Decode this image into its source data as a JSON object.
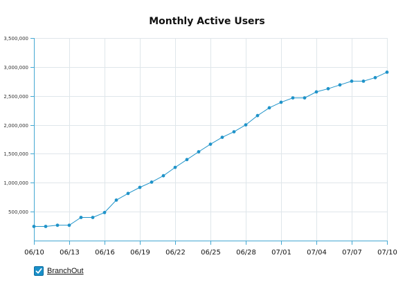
{
  "colors": {
    "series": "#1f93c9",
    "axis": "#42a7d2",
    "grid": "#dfe6ea",
    "checkbox": "#198fc9"
  },
  "legend": {
    "label": "BranchOut",
    "checked": true,
    "icon": "checkmark-icon"
  },
  "chart_data": {
    "type": "line",
    "title": "Monthly Active Users",
    "xlabel": "",
    "ylabel": "",
    "ylim": [
      0,
      3500000
    ],
    "yticks": [
      500000,
      1000000,
      1500000,
      2000000,
      2500000,
      3000000,
      3500000
    ],
    "ytick_labels": [
      "500,000",
      "1,000,000",
      "1,500,000",
      "2,000,000",
      "2,500,000",
      "3,000,000",
      "3,500,000"
    ],
    "x_tick_labels": [
      "06/10",
      "06/13",
      "06/16",
      "06/19",
      "06/22",
      "06/25",
      "06/28",
      "07/01",
      "07/04",
      "07/07",
      "07/10"
    ],
    "grid": true,
    "legend": "bottom-left",
    "x": [
      "06/10",
      "06/11",
      "06/12",
      "06/13",
      "06/14",
      "06/15",
      "06/16",
      "06/17",
      "06/18",
      "06/19",
      "06/20",
      "06/21",
      "06/22",
      "06/23",
      "06/24",
      "06/25",
      "06/26",
      "06/27",
      "06/28",
      "06/29",
      "06/30",
      "07/01",
      "07/02",
      "07/03",
      "07/04",
      "07/05",
      "07/06",
      "07/07",
      "07/08",
      "07/09",
      "07/10"
    ],
    "series": [
      {
        "name": "BranchOut",
        "values": [
          245000,
          245000,
          265000,
          265000,
          400000,
          400000,
          485000,
          700000,
          815000,
          920000,
          1010000,
          1120000,
          1265000,
          1400000,
          1535000,
          1665000,
          1785000,
          1880000,
          2000000,
          2160000,
          2295000,
          2390000,
          2465000,
          2465000,
          2570000,
          2625000,
          2690000,
          2755000,
          2755000,
          2815000,
          2910000
        ]
      }
    ]
  }
}
